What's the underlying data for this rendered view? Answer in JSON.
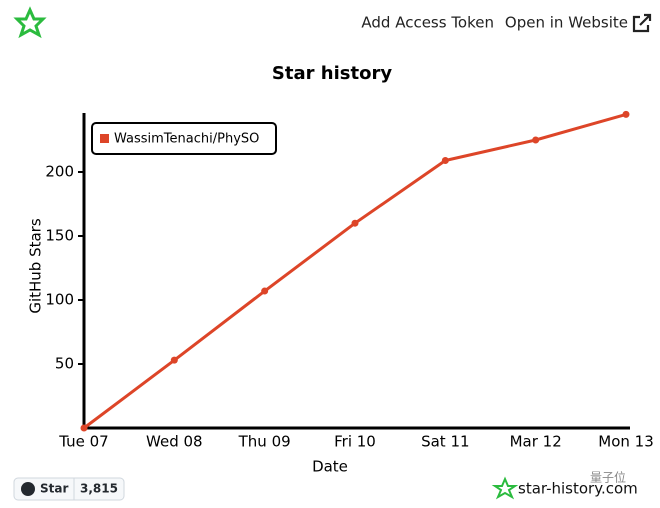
{
  "header": {
    "add_token": "Add Access Token",
    "open_site": "Open in Website"
  },
  "chart_data": {
    "type": "line",
    "title": "Star history",
    "x_label": "Date",
    "y_label": "GitHub Stars",
    "categories": [
      "Tue 07",
      "Wed 08",
      "Thu 09",
      "Fri 10",
      "Sat 11",
      "Mar 12",
      "Mon 13"
    ],
    "series": [
      {
        "name": "WassimTenachi/PhySO",
        "color": "#dd4528",
        "values": [
          0,
          53,
          107,
          160,
          209,
          225,
          245
        ]
      }
    ],
    "ylim": [
      0,
      250
    ],
    "yticks": [
      50,
      100,
      150,
      200
    ],
    "legend": "upper left"
  },
  "footer": {
    "star_button": "Star",
    "star_count": "3,815",
    "brand": "star-history.com",
    "watermark": "量子位"
  }
}
